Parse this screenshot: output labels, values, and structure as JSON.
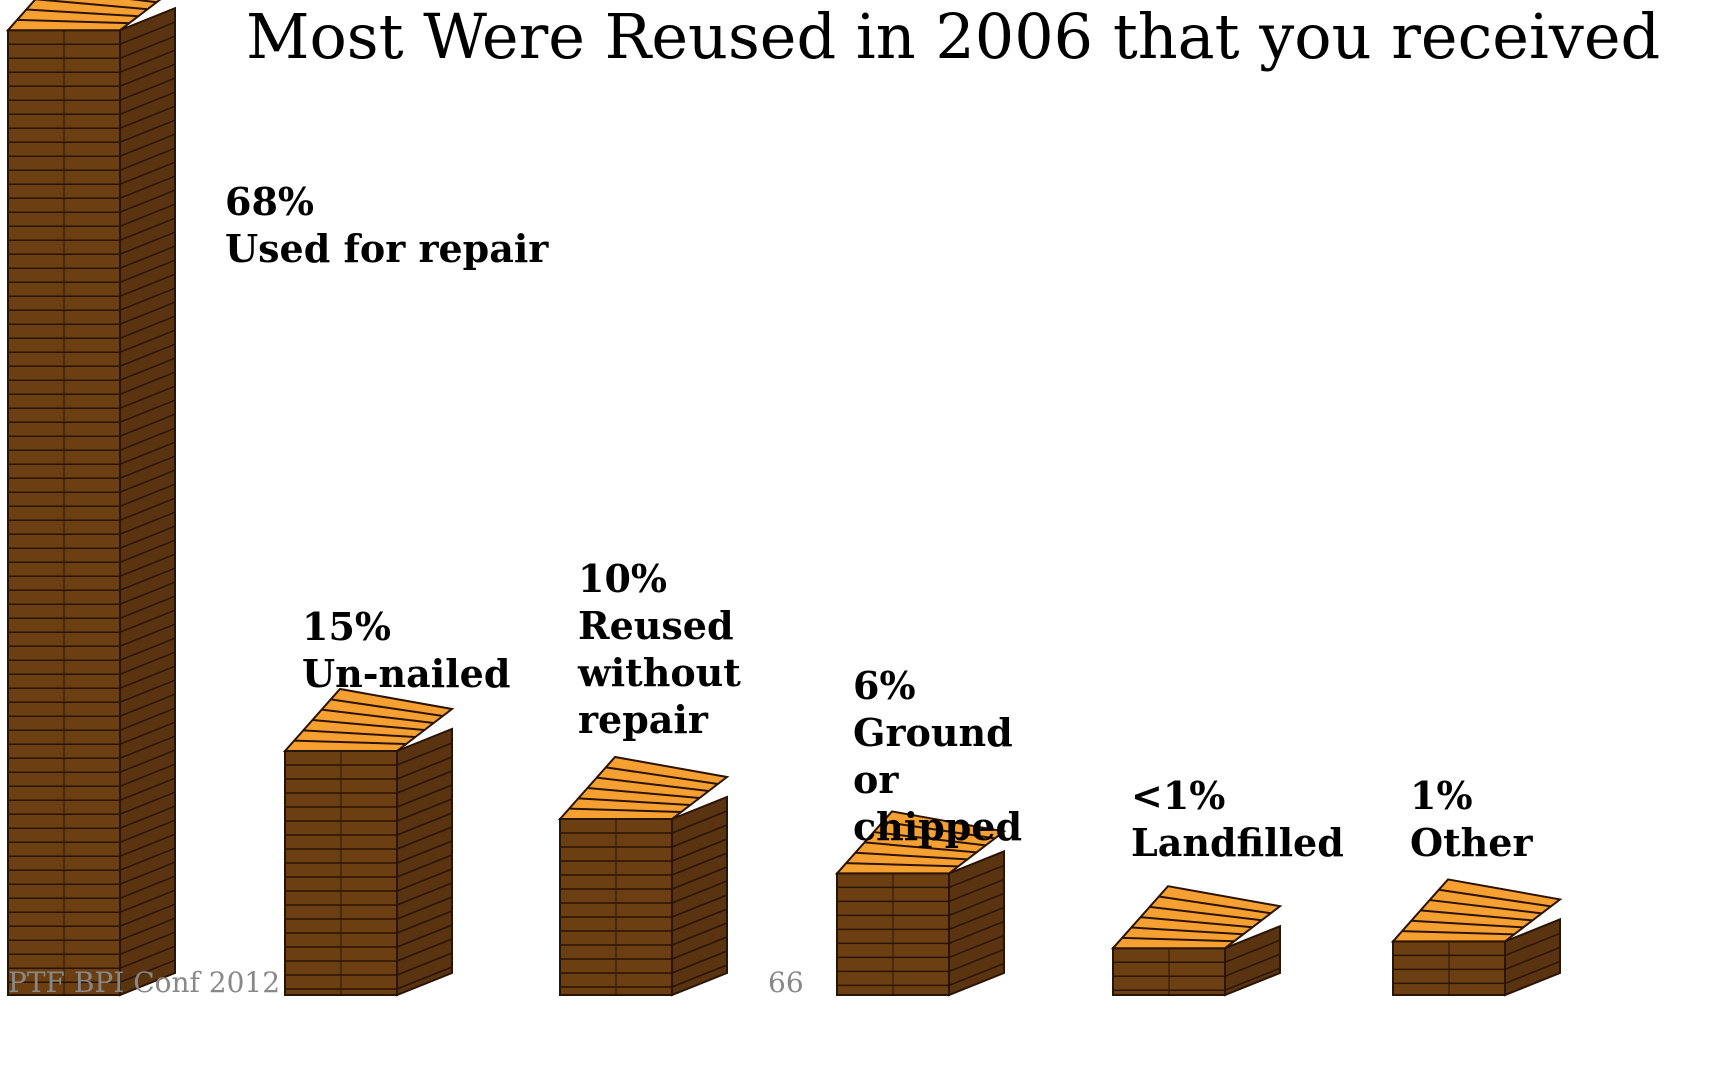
{
  "chart_data": {
    "type": "pallet-stack",
    "title": "Most Were Reused in 2006 that you received",
    "categories": [
      "Used for repair",
      "Un-nailed",
      "Reused without repair",
      "Ground or chipped",
      "Landfilled",
      "Other"
    ],
    "values": [
      68,
      15,
      10,
      6,
      0.5,
      1
    ],
    "value_labels": [
      "68%",
      "15%",
      "10%",
      "6%",
      "<1%",
      "1%"
    ],
    "color": "#f7a032",
    "footer": "PTF BPI  Conf 2012",
    "page_number": "66"
  }
}
